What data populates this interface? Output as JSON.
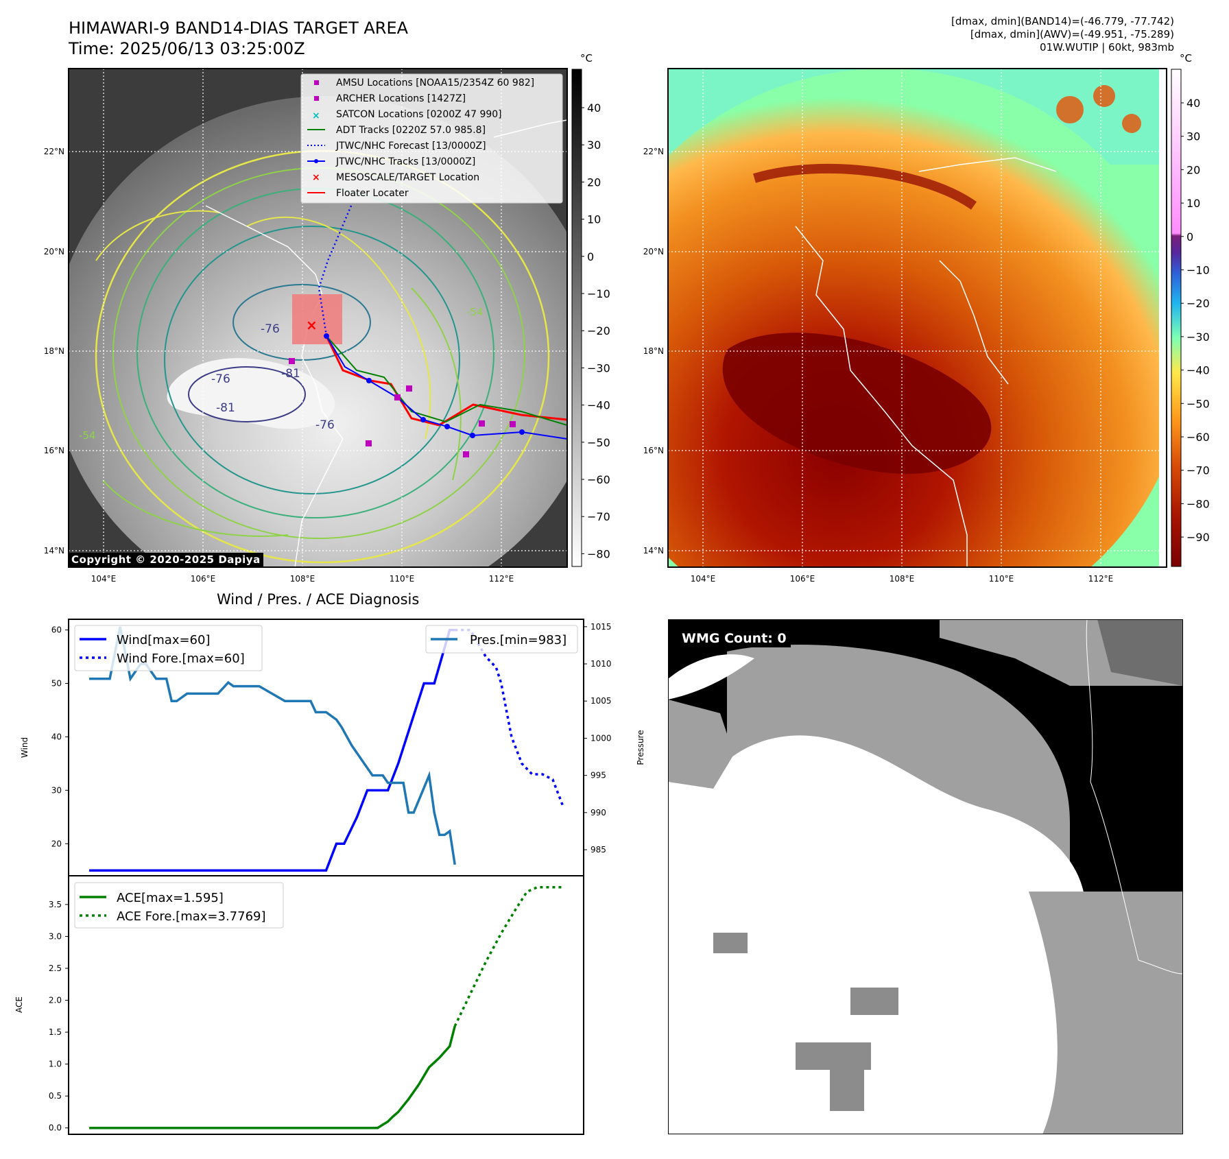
{
  "header": {
    "title_line1": "HIMAWARI-9 BAND14-DIAS TARGET AREA",
    "title_line2": "Time: 2025/06/13 03:25:00Z",
    "info_line1": "[dmax, dmin](BAND14)=(-46.779, -77.742)",
    "info_line2": "[dmax, dmin](AWV)=(-49.951, -75.289)",
    "info_line3": "01W.WUTIP | 60kt, 983mb"
  },
  "maps": {
    "lat_labels": [
      "22°N",
      "20°N",
      "18°N",
      "16°N",
      "14°N"
    ],
    "lon_labels": [
      "104°E",
      "106°E",
      "108°E",
      "110°E",
      "112°E"
    ],
    "copyright": "Copyright © 2020-2025 Dapiya",
    "unit": "°C",
    "cb1_ticks": [
      "40",
      "30",
      "20",
      "10",
      "0",
      "−10",
      "−20",
      "−30",
      "−40",
      "−50",
      "−60",
      "−70",
      "−80"
    ],
    "cb2_ticks": [
      "40",
      "30",
      "20",
      "10",
      "0",
      "−10",
      "−20",
      "−30",
      "−40",
      "−50",
      "−60",
      "−70",
      "−80",
      "−90"
    ],
    "legend": [
      "AMSU Locations [NOAA15/2354Z 60 982]",
      "ARCHER Locations [1427Z]",
      "SATCON Locations [0200Z 47 990]",
      "ADT Tracks [0220Z 57.0 985.8]",
      "JTWC/NHC Forecast [13/0000Z]",
      "JTWC/NHC Tracks [13/0000Z]",
      "MESOSCALE/TARGET Location",
      "Floater Locater"
    ],
    "contour_labels": [
      "-76",
      "-81",
      "-76",
      "-81",
      "-76",
      "-54",
      "-54"
    ],
    "colors": {
      "amsu": "#bf00bf",
      "satcon": "#00bfbf",
      "adt": "#008000",
      "jtwc": "#0000ff",
      "target": "#ff0000",
      "floater": "#ff0000"
    }
  },
  "diagnosis": {
    "title": "Wind / Pres. / ACE Diagnosis",
    "wmg_label": "WMG Count: 0"
  },
  "chart_data": [
    {
      "type": "line",
      "title": "Wind / Pres. / ACE Diagnosis",
      "ylabel": "Wind",
      "ylim": [
        14,
        62
      ],
      "yticks": [
        20,
        30,
        40,
        50,
        60
      ],
      "y2label": "Pressure",
      "y2lim": [
        981.5,
        1016
      ],
      "y2ticks": [
        985,
        990,
        995,
        1000,
        1005,
        1010,
        1015
      ],
      "xlim": [
        0,
        100
      ],
      "series": [
        {
          "name": "Wind[max=60]",
          "axis": "left",
          "color": "#0000ff",
          "style": "solid",
          "x": [
            4,
            50,
            52,
            53.5,
            56,
            58,
            62,
            64,
            69,
            71,
            74,
            75
          ],
          "y": [
            15,
            15,
            20,
            20,
            25,
            30,
            30,
            35,
            50,
            50,
            60,
            60
          ]
        },
        {
          "name": "Wind Fore.[max=60]",
          "axis": "left",
          "color": "#0000ff",
          "style": "dotted",
          "x": [
            75,
            78,
            81,
            83,
            84,
            86,
            88,
            90,
            92,
            94,
            96
          ],
          "y": [
            60,
            60,
            55,
            53,
            50,
            40,
            35,
            33,
            33,
            32,
            27
          ]
        },
        {
          "name": "Pres.[min=983]",
          "axis": "right",
          "color": "#1f77b4",
          "style": "solid",
          "x": [
            4,
            8,
            10,
            12,
            14,
            15,
            17,
            19,
            20,
            21,
            23,
            24,
            28,
            29,
            31,
            32,
            36,
            37,
            42,
            43,
            44,
            46,
            47,
            48,
            50,
            52,
            53,
            55,
            56,
            57,
            59,
            61,
            62,
            65,
            66,
            67,
            70,
            71,
            72,
            73,
            74,
            75
          ],
          "y": [
            1008,
            1008,
            1015,
            1008,
            1010,
            1010,
            1008,
            1008,
            1005,
            1005,
            1006,
            1006,
            1006,
            1006,
            1007.5,
            1007,
            1007,
            1007,
            1005,
            1005,
            1005,
            1005,
            1005,
            1003.5,
            1003.5,
            1002.5,
            1001.5,
            999,
            998,
            997,
            995,
            995,
            994,
            994,
            990,
            990,
            995,
            990,
            987,
            987,
            987.5,
            983
          ]
        },
        {
          "name": "ACE[max=1.595]",
          "axis": "ace",
          "color": "#008000",
          "style": "solid",
          "x": [
            4,
            60,
            61,
            62,
            63,
            64,
            66,
            68,
            70,
            72,
            74,
            75
          ],
          "y": [
            0,
            0,
            0.05,
            0.1,
            0.18,
            0.25,
            0.45,
            0.68,
            0.95,
            1.1,
            1.28,
            1.595
          ]
        },
        {
          "name": "ACE Fore.[max=3.7769]",
          "axis": "ace",
          "color": "#008000",
          "style": "dotted",
          "x": [
            75,
            78,
            81,
            84,
            87,
            89,
            91,
            93,
            96
          ],
          "y": [
            1.595,
            2.1,
            2.6,
            3.05,
            3.45,
            3.7,
            3.77,
            3.77,
            3.77
          ]
        }
      ]
    },
    {
      "type": "line",
      "ylabel": "ACE",
      "ylim": [
        -0.1,
        3.95
      ],
      "yticks": [
        "0.0",
        "0.5",
        "1.0",
        "1.5",
        "2.0",
        "2.5",
        "3.0",
        "3.5"
      ],
      "xlim": [
        0,
        100
      ]
    }
  ]
}
